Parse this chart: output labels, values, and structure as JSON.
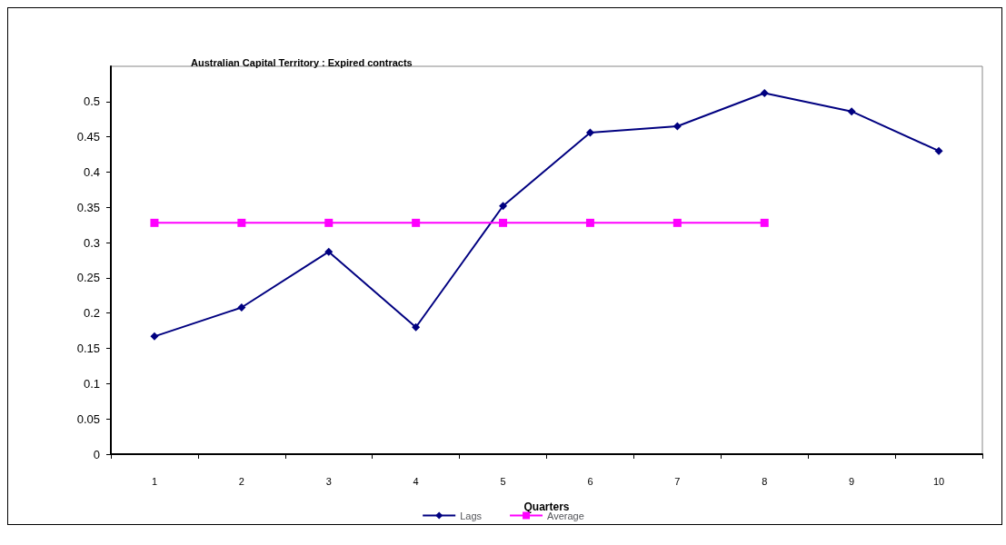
{
  "chart_data": {
    "type": "line",
    "title": "Australian Capital Territory : Expired contracts",
    "xlabel": "Quarters",
    "categories": [
      "1",
      "2",
      "3",
      "4",
      "5",
      "6",
      "7",
      "8",
      "9",
      "10"
    ],
    "series": [
      {
        "name": "Lags",
        "color": "#000080",
        "marker": "diamond",
        "values": [
          0.167,
          0.208,
          0.287,
          0.18,
          0.352,
          0.456,
          0.465,
          0.512,
          0.486,
          0.43
        ]
      },
      {
        "name": "Average",
        "color": "#ff00ff",
        "marker": "square",
        "values": [
          0.328,
          0.328,
          0.328,
          0.328,
          0.328,
          0.328,
          0.328,
          0.328,
          null,
          null
        ]
      }
    ],
    "ylim": [
      0,
      0.55
    ],
    "yticks": [
      0,
      0.05,
      0.1,
      0.15,
      0.2,
      0.25,
      0.3,
      0.35,
      0.4,
      0.45,
      0.5
    ],
    "grid": false,
    "legend": "bottom"
  }
}
